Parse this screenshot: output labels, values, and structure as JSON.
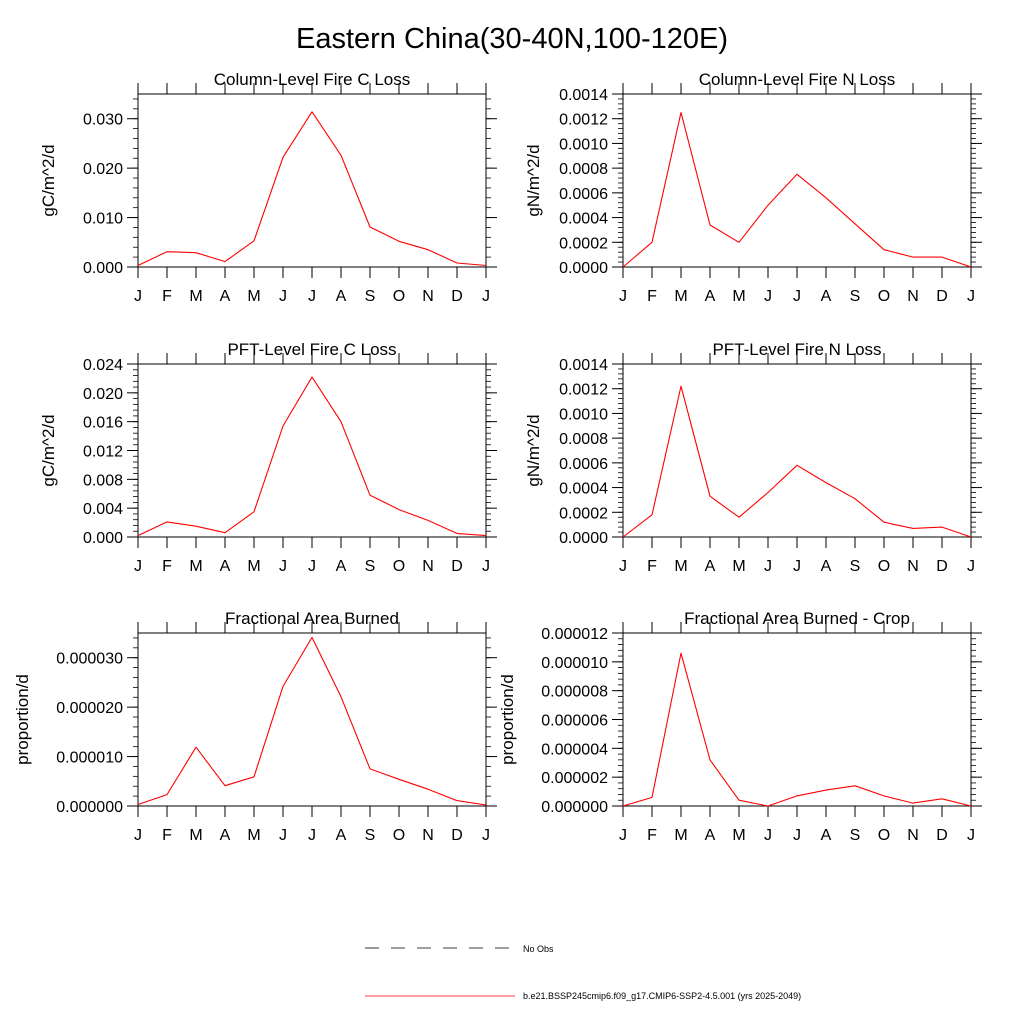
{
  "figure": {
    "title": "Eastern China(30-40N,100-120E)"
  },
  "legend": {
    "obs_label": "No Obs",
    "model_label": "b.e21.BSSP245cmip6.f09_g17.CMIP6-SSP2-4.5.001 (yrs 2025-2049)",
    "obs_color": "#000000",
    "model_color": "#ff0000"
  },
  "chart_data": [
    {
      "type": "line",
      "title": "Column-Level Fire C Loss",
      "ylabel": "gC/m^2/d",
      "xlabel": "",
      "categories": [
        "J",
        "F",
        "M",
        "A",
        "M",
        "J",
        "J",
        "A",
        "S",
        "O",
        "N",
        "D",
        "J"
      ],
      "ylim": [
        0,
        0.035
      ],
      "yticks": [
        0,
        0.01,
        0.02,
        0.03
      ],
      "ytick_labels": [
        "0.000",
        "0.010",
        "0.020",
        "0.030"
      ],
      "series": [
        {
          "color": "#ff0000",
          "values": [
            0.0003,
            0.0031,
            0.0029,
            0.0011,
            0.0053,
            0.0222,
            0.0314,
            0.0226,
            0.0081,
            0.0052,
            0.0035,
            0.0008,
            0.0003
          ]
        }
      ]
    },
    {
      "type": "line",
      "title": "Column-Level Fire N Loss",
      "ylabel": "gN/m^2/d",
      "xlabel": "",
      "categories": [
        "J",
        "F",
        "M",
        "A",
        "M",
        "J",
        "J",
        "A",
        "S",
        "O",
        "N",
        "D",
        "J"
      ],
      "ylim": [
        0,
        0.0014
      ],
      "yticks": [
        0,
        0.0002,
        0.0004,
        0.0006,
        0.0008,
        0.001,
        0.0012,
        0.0014
      ],
      "ytick_labels": [
        "0.0000",
        "0.0002",
        "0.0004",
        "0.0006",
        "0.0008",
        "0.0010",
        "0.0012",
        "0.0014"
      ],
      "series": [
        {
          "color": "#ff0000",
          "values": [
            0.0,
            0.0002,
            0.00125,
            0.00034,
            0.0002,
            0.0005,
            0.00075,
            0.00056,
            0.00035,
            0.00014,
            8e-05,
            8e-05,
            0.0
          ]
        }
      ]
    },
    {
      "type": "line",
      "title": "PFT-Level Fire C Loss",
      "ylabel": "gC/m^2/d",
      "xlabel": "",
      "categories": [
        "J",
        "F",
        "M",
        "A",
        "M",
        "J",
        "J",
        "A",
        "S",
        "O",
        "N",
        "D",
        "J"
      ],
      "ylim": [
        0,
        0.024
      ],
      "yticks": [
        0,
        0.004,
        0.008,
        0.012,
        0.016,
        0.02,
        0.024
      ],
      "ytick_labels": [
        "0.000",
        "0.004",
        "0.008",
        "0.012",
        "0.016",
        "0.020",
        "0.024"
      ],
      "series": [
        {
          "color": "#ff0000",
          "values": [
            0.0002,
            0.0021,
            0.0015,
            0.0006,
            0.0035,
            0.0154,
            0.0222,
            0.016,
            0.0058,
            0.0038,
            0.0023,
            0.0005,
            0.0002
          ]
        }
      ]
    },
    {
      "type": "line",
      "title": "PFT-Level Fire N Loss",
      "ylabel": "gN/m^2/d",
      "xlabel": "",
      "categories": [
        "J",
        "F",
        "M",
        "A",
        "M",
        "J",
        "J",
        "A",
        "S",
        "O",
        "N",
        "D",
        "J"
      ],
      "ylim": [
        0,
        0.0014
      ],
      "yticks": [
        0,
        0.0002,
        0.0004,
        0.0006,
        0.0008,
        0.001,
        0.0012,
        0.0014
      ],
      "ytick_labels": [
        "0.0000",
        "0.0002",
        "0.0004",
        "0.0006",
        "0.0008",
        "0.0010",
        "0.0012",
        "0.0014"
      ],
      "series": [
        {
          "color": "#ff0000",
          "values": [
            0.0,
            0.00018,
            0.00122,
            0.00033,
            0.00016,
            0.00036,
            0.00058,
            0.00044,
            0.00031,
            0.00012,
            7e-05,
            8e-05,
            0.0
          ]
        }
      ]
    },
    {
      "type": "line",
      "title": "Fractional Area Burned",
      "ylabel": "proportion/d",
      "xlabel": "",
      "categories": [
        "J",
        "F",
        "M",
        "A",
        "M",
        "J",
        "J",
        "A",
        "S",
        "O",
        "N",
        "D",
        "J"
      ],
      "ylim": [
        0,
        3.5e-05
      ],
      "yticks": [
        0,
        1e-05,
        2e-05,
        3e-05
      ],
      "ytick_labels": [
        "0.000000",
        "0.000010",
        "0.000020",
        "0.000030"
      ],
      "series": [
        {
          "color": "#ff0000",
          "values": [
            3e-07,
            2.3e-06,
            1.19e-05,
            4.1e-06,
            5.9e-06,
            2.42e-05,
            3.41e-05,
            2.21e-05,
            7.5e-06,
            5.4e-06,
            3.4e-06,
            1.1e-06,
            2e-07
          ]
        }
      ]
    },
    {
      "type": "line",
      "title": "Fractional Area Burned - Crop",
      "ylabel": "proportion/d",
      "xlabel": "",
      "categories": [
        "J",
        "F",
        "M",
        "A",
        "M",
        "J",
        "J",
        "A",
        "S",
        "O",
        "N",
        "D",
        "J"
      ],
      "ylim": [
        0,
        1.2e-05
      ],
      "yticks": [
        0,
        2e-06,
        4e-06,
        6e-06,
        8e-06,
        1e-05,
        1.2e-05
      ],
      "ytick_labels": [
        "0.000000",
        "0.000002",
        "0.000004",
        "0.000006",
        "0.000008",
        "0.000010",
        "0.000012"
      ],
      "series": [
        {
          "color": "#ff0000",
          "values": [
            0.0,
            6e-07,
            1.06e-05,
            3.2e-06,
            4e-07,
            0.0,
            7e-07,
            1.1e-06,
            1.4e-06,
            7e-07,
            2e-07,
            5e-07,
            0.0
          ]
        }
      ]
    }
  ]
}
